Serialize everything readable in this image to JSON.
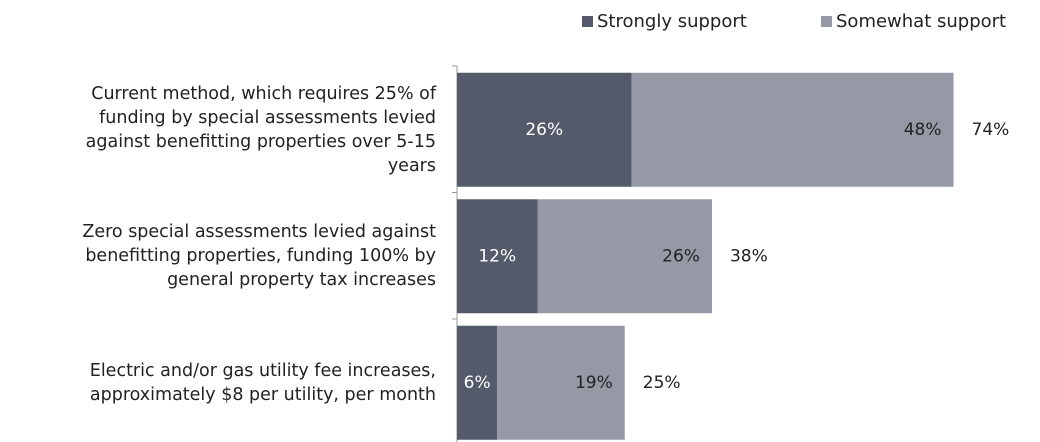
{
  "chart_data": {
    "type": "stacked-bar-horizontal",
    "categories": [
      "Current method, which requires 25% of\nfunding by special assessments levied\nagainst benefitting properties over 5-15\nyears",
      "Zero special assessments levied against\nbenefitting properties, funding 100% by\ngeneral property tax increases",
      "Electric and/or gas utility fee increases,\napproximately $8 per utility, per month"
    ],
    "series": [
      {
        "name": "Strongly support",
        "color": "#545a6a",
        "values": [
          26,
          12,
          6
        ],
        "value_labels": [
          "26%",
          "12%",
          "6%"
        ]
      },
      {
        "name": "Somewhat support",
        "color": "#9599a6",
        "values": [
          48,
          26,
          19
        ],
        "value_labels": [
          "48%",
          "26%",
          "19%"
        ]
      }
    ],
    "totals": {
      "values": [
        74,
        38,
        25
      ],
      "value_labels": [
        "74%",
        "38%",
        "25%"
      ]
    },
    "legend": "top-right"
  }
}
